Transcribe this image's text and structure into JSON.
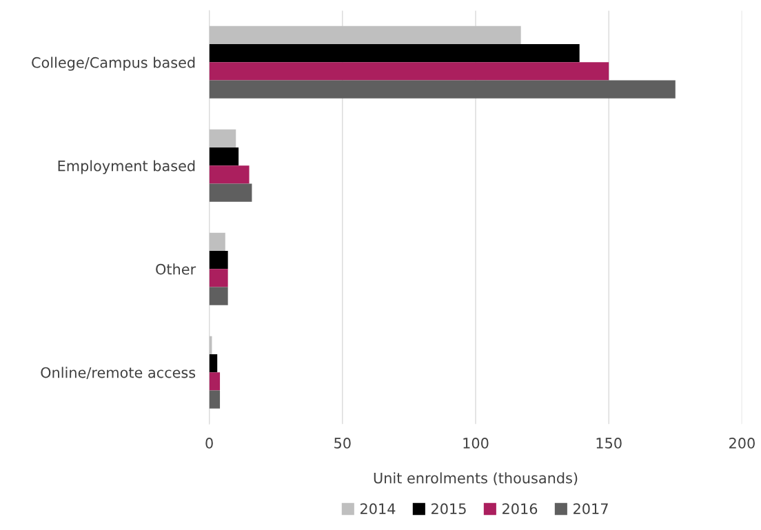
{
  "chart_data": {
    "type": "bar",
    "orientation": "horizontal",
    "xlabel": "Unit enrolments (thousands)",
    "categories": [
      "College/Campus based",
      "Employment based",
      "Other",
      "Online/remote access"
    ],
    "series": [
      {
        "name": "2014",
        "color": "#bfbfbf",
        "values": [
          117,
          10,
          6,
          1
        ]
      },
      {
        "name": "2015",
        "color": "#000000",
        "values": [
          139,
          11,
          7,
          3
        ]
      },
      {
        "name": "2016",
        "color": "#ab1f5e",
        "values": [
          150,
          15,
          7,
          4
        ]
      },
      {
        "name": "2017",
        "color": "#5f5f5f",
        "values": [
          175,
          16,
          7,
          4
        ]
      }
    ],
    "xlim": [
      0,
      200
    ],
    "xticks": [
      0,
      50,
      100,
      150,
      200
    ],
    "grid": "x",
    "legend": "bottom"
  }
}
